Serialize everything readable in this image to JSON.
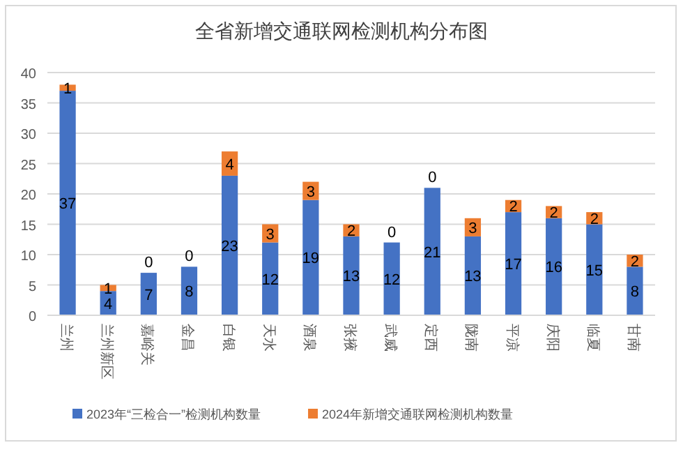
{
  "chart_data": {
    "type": "bar",
    "title": "全省新增交通联网检测机构分布图",
    "stacked": true,
    "categories": [
      "兰州",
      "兰州新区",
      "嘉峪关",
      "金昌",
      "白银",
      "天水",
      "酒泉",
      "张掖",
      "武威",
      "定西",
      "陇南",
      "平凉",
      "庆阳",
      "临夏",
      "甘南"
    ],
    "series": [
      {
        "name": "2023年“三检合一”检测机构数量",
        "color": "#4472c4",
        "values": [
          37,
          4,
          7,
          8,
          23,
          12,
          19,
          13,
          12,
          21,
          13,
          17,
          16,
          15,
          8
        ]
      },
      {
        "name": "2024年新增交通联网检测机构数量",
        "color": "#ed7d31",
        "values": [
          1,
          1,
          0,
          0,
          4,
          3,
          3,
          2,
          0,
          0,
          3,
          2,
          2,
          2,
          2
        ]
      }
    ],
    "ylim": [
      0,
      40
    ],
    "yticks": [
      0,
      5,
      10,
      15,
      20,
      25,
      30,
      35,
      40
    ],
    "grid": "y",
    "legend": "bottom",
    "data_labels": true
  }
}
